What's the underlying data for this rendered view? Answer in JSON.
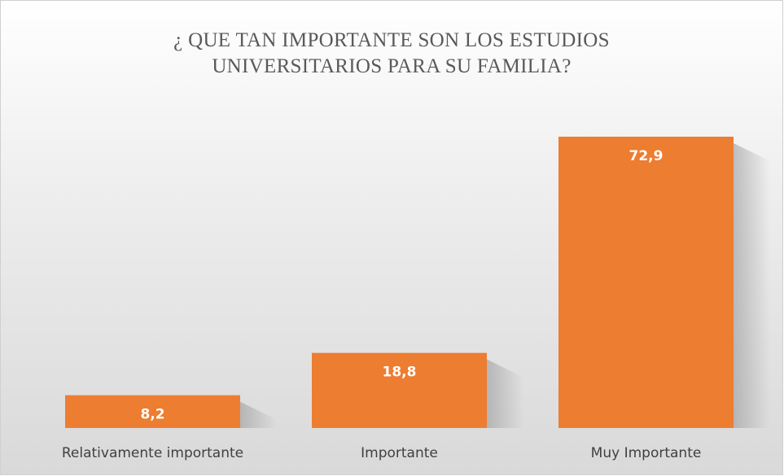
{
  "chart_data": {
    "type": "bar",
    "title": "¿ QUE TAN IMPORTANTE SON LOS ESTUDIOS UNIVERSITARIOS PARA SU FAMILIA?",
    "categories": [
      "Relativamente importante",
      "Importante",
      "Muy Importante"
    ],
    "values": [
      8.2,
      18.8,
      72.9
    ],
    "value_labels": [
      "8,2",
      "18,8",
      "72,9"
    ],
    "color": "#ed7d31"
  }
}
